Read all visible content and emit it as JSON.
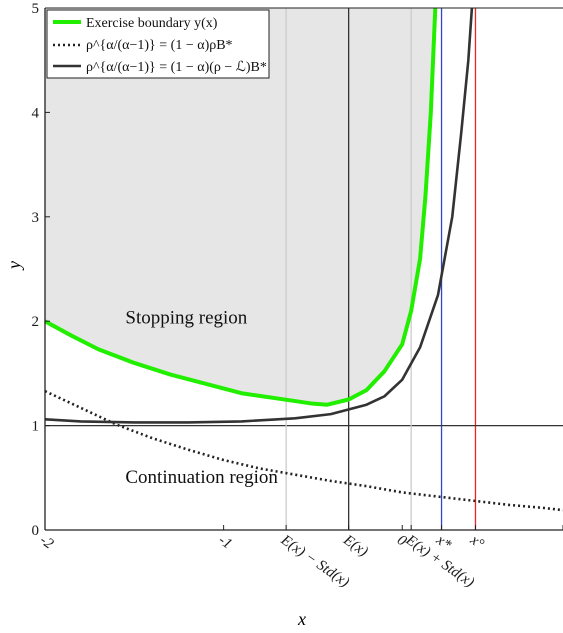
{
  "chart_data": {
    "type": "line",
    "xlabel": "x",
    "ylabel": "y",
    "xlim": [
      -2,
      0.9
    ],
    "ylim": [
      0,
      5
    ],
    "grid": false,
    "legend_placement": "top-left",
    "x_ticks": [
      {
        "value": -2,
        "label": "-2"
      },
      {
        "value": -1,
        "label": "-1"
      },
      {
        "value": -0.65,
        "label": "E(x) − Std(x)"
      },
      {
        "value": -0.3,
        "label": "E(x)"
      },
      {
        "value": 0,
        "label": "0"
      },
      {
        "value": 0.05,
        "label": "E(x) + Std(x)"
      },
      {
        "value": 0.22,
        "label": "x*"
      },
      {
        "value": 0.41,
        "label": "x°"
      },
      {
        "value": 0.9,
        "label": ""
      }
    ],
    "y_ticks": [
      0,
      1,
      2,
      3,
      4,
      5
    ],
    "series": [
      {
        "name": "Exercise boundary y(x)",
        "style": "solid",
        "color": "#22ee00",
        "points": [
          [
            -2.0,
            2.0
          ],
          [
            -1.85,
            1.86
          ],
          [
            -1.7,
            1.73
          ],
          [
            -1.5,
            1.6
          ],
          [
            -1.3,
            1.49
          ],
          [
            -1.1,
            1.4
          ],
          [
            -0.9,
            1.31
          ],
          [
            -0.7,
            1.26
          ],
          [
            -0.5,
            1.21
          ],
          [
            -0.42,
            1.2
          ],
          [
            -0.3,
            1.25
          ],
          [
            -0.2,
            1.34
          ],
          [
            -0.1,
            1.52
          ],
          [
            0.0,
            1.78
          ],
          [
            0.05,
            2.1
          ],
          [
            0.1,
            2.6
          ],
          [
            0.13,
            3.2
          ],
          [
            0.16,
            4.0
          ],
          [
            0.175,
            4.6
          ],
          [
            0.185,
            5.0
          ]
        ]
      },
      {
        "name": "ρ^{α/(α−1)} = (1 − α)ρB*",
        "style": "dotted",
        "color": "#222222",
        "points": [
          [
            -2.0,
            1.33
          ],
          [
            -1.8,
            1.17
          ],
          [
            -1.6,
            1.01
          ],
          [
            -1.4,
            0.88
          ],
          [
            -1.2,
            0.77
          ],
          [
            -1.0,
            0.67
          ],
          [
            -0.8,
            0.59
          ],
          [
            -0.6,
            0.53
          ],
          [
            -0.4,
            0.47
          ],
          [
            -0.2,
            0.42
          ],
          [
            0.0,
            0.36
          ],
          [
            0.2,
            0.32
          ],
          [
            0.4,
            0.28
          ],
          [
            0.6,
            0.24
          ],
          [
            0.8,
            0.21
          ],
          [
            0.9,
            0.19
          ]
        ]
      },
      {
        "name": "ρ^{α/(α−1)} = (1 − α)(ρ − ℒ)B*",
        "style": "solid",
        "color": "#333333",
        "points": [
          [
            -2.0,
            1.06
          ],
          [
            -1.8,
            1.04
          ],
          [
            -1.5,
            1.03
          ],
          [
            -1.2,
            1.03
          ],
          [
            -0.9,
            1.04
          ],
          [
            -0.6,
            1.07
          ],
          [
            -0.4,
            1.11
          ],
          [
            -0.2,
            1.2
          ],
          [
            -0.1,
            1.28
          ],
          [
            0.0,
            1.44
          ],
          [
            0.1,
            1.75
          ],
          [
            0.2,
            2.25
          ],
          [
            0.28,
            3.0
          ],
          [
            0.33,
            3.8
          ],
          [
            0.37,
            4.5
          ],
          [
            0.39,
            5.0
          ]
        ]
      }
    ],
    "reference_lines": [
      {
        "orientation": "vertical",
        "x": -0.3,
        "color": "#333333"
      },
      {
        "orientation": "vertical",
        "x": 0.22,
        "color": "#3344cc"
      },
      {
        "orientation": "vertical",
        "x": 0.41,
        "color": "#ee2222"
      },
      {
        "orientation": "horizontal",
        "y": 1,
        "color": "#333333"
      },
      {
        "orientation": "vertical",
        "x": -0.65,
        "color": "#cccccc"
      },
      {
        "orientation": "vertical",
        "x": 0.05,
        "color": "#cccccc"
      }
    ],
    "annotations": [
      {
        "text": "Stopping region",
        "x": -1.55,
        "y": 1.98
      },
      {
        "text": "Continuation region",
        "x": -1.55,
        "y": 0.45
      }
    ],
    "stopping_region_fill": "#e6e6e6"
  }
}
